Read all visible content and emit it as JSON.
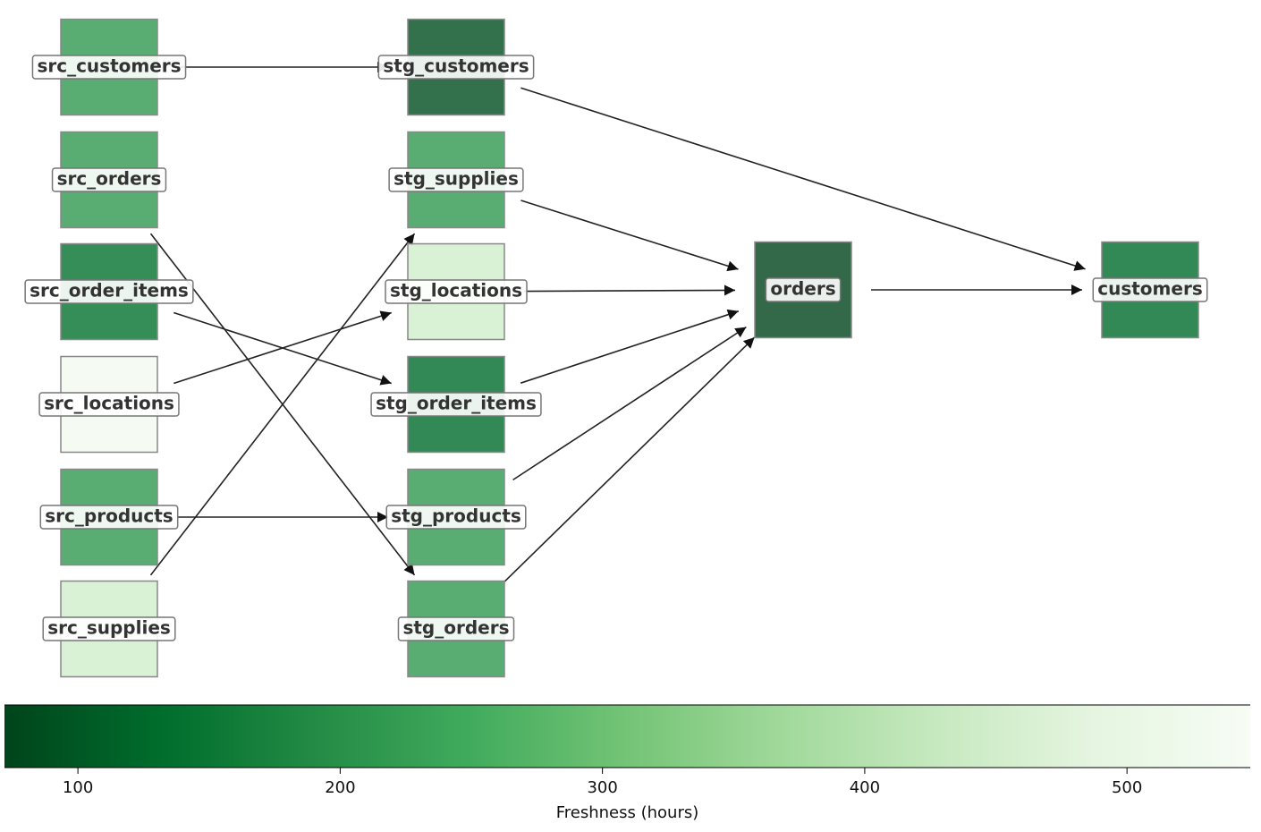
{
  "chart_data": {
    "type": "lineage",
    "nodes": [
      {
        "label": "src_customers",
        "freshness": 215
      },
      {
        "label": "src_orders",
        "freshness": 215
      },
      {
        "label": "src_order_items",
        "freshness": 137
      },
      {
        "label": "src_locations",
        "freshness": 533
      },
      {
        "label": "src_products",
        "freshness": 215
      },
      {
        "label": "src_supplies",
        "freshness": 447
      },
      {
        "label": "stg_customers",
        "freshness": 85
      },
      {
        "label": "stg_supplies",
        "freshness": 215
      },
      {
        "label": "stg_locations",
        "freshness": 447
      },
      {
        "label": "stg_order_items",
        "freshness": 130
      },
      {
        "label": "stg_products",
        "freshness": 215
      },
      {
        "label": "stg_orders",
        "freshness": 215
      },
      {
        "label": "orders",
        "freshness": 72
      },
      {
        "label": "customers",
        "freshness": 129
      }
    ],
    "edges": [
      {
        "from": "src_customers",
        "to": "stg_customers"
      },
      {
        "from": "src_orders",
        "to": "stg_orders"
      },
      {
        "from": "src_order_items",
        "to": "stg_order_items"
      },
      {
        "from": "src_locations",
        "to": "stg_locations"
      },
      {
        "from": "src_products",
        "to": "stg_products"
      },
      {
        "from": "src_supplies",
        "to": "stg_supplies"
      },
      {
        "from": "stg_supplies",
        "to": "orders"
      },
      {
        "from": "stg_locations",
        "to": "orders"
      },
      {
        "from": "stg_order_items",
        "to": "orders"
      },
      {
        "from": "stg_products",
        "to": "orders"
      },
      {
        "from": "stg_orders",
        "to": "orders"
      },
      {
        "from": "stg_customers",
        "to": "customers"
      },
      {
        "from": "orders",
        "to": "customers"
      }
    ],
    "colormap": "Greens_r",
    "colorbar": {
      "label": "Freshness (hours)",
      "xlim": [
        72,
        547
      ],
      "xticks": [
        100,
        200,
        300,
        400,
        500
      ]
    }
  }
}
